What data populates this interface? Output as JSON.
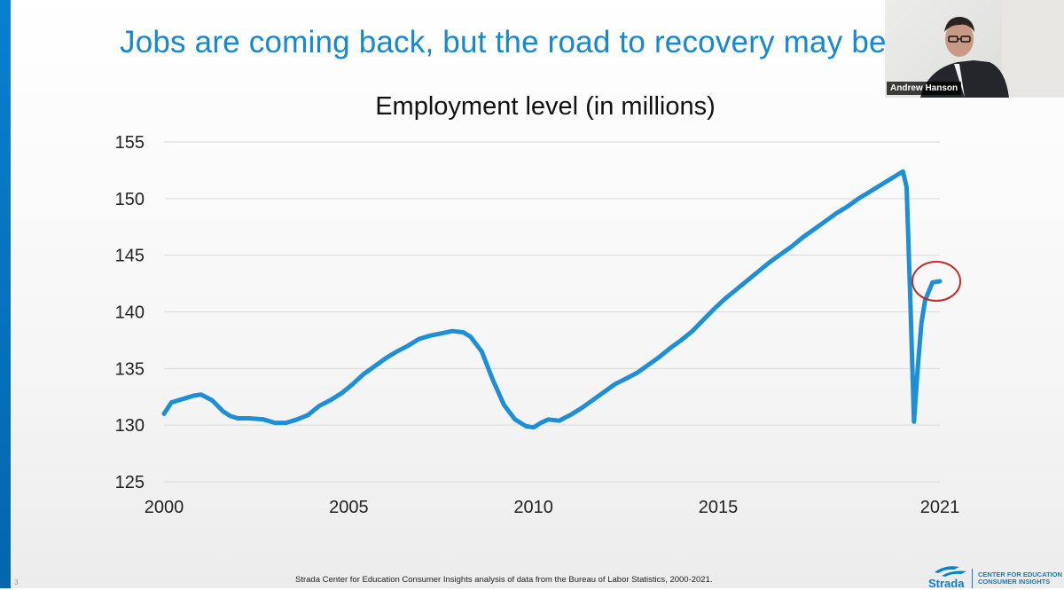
{
  "slide": {
    "headline": "Jobs are coming back, but the road to recovery may be",
    "footer_source": "Strada Center for Education Consumer Insights analysis of data from the Bureau of Labor Statistics, 2000-2021.",
    "page_number": "3",
    "logo_word": "Strada",
    "logo_tag_line1": "CENTER FOR EDUCATION",
    "logo_tag_line2": "CONSUMER INSIGHTS",
    "brand_color": "#0a7fcf",
    "headline_color": "#1688cf"
  },
  "video_tile": {
    "speaker_name": "Andrew Hanson"
  },
  "chart_data": {
    "type": "line",
    "title": "Employment level (in millions)",
    "xlabel": "",
    "ylabel": "",
    "xlim": [
      2000,
      2021
    ],
    "ylim": [
      125,
      155
    ],
    "x_ticks": [
      "2000",
      "2005",
      "2010",
      "2015",
      "2021"
    ],
    "y_ticks": [
      "125",
      "130",
      "135",
      "140",
      "145",
      "150",
      "155"
    ],
    "grid": "horizontal",
    "line_color": "#1c8fd6",
    "annotation": {
      "type": "circle",
      "color": "#c82828",
      "at": [
        2021.0,
        142.7
      ]
    },
    "series": [
      {
        "x": [
          2000,
          2000.2,
          2000.5,
          2000.8,
          2001.0,
          2001.3,
          2001.6,
          2001.8,
          2002.0,
          2002.3,
          2002.7,
          2003.0,
          2003.3,
          2003.6,
          2003.9,
          2004.2,
          2004.5,
          2004.8,
          2005.1,
          2005.4,
          2005.7,
          2006.0,
          2006.3,
          2006.6,
          2006.9,
          2007.2,
          2007.5,
          2007.8,
          2008.1,
          2008.3,
          2008.6,
          2008.9,
          2009.2,
          2009.5,
          2009.8,
          2010.0,
          2010.2,
          2010.4,
          2010.7,
          2011.0,
          2011.3,
          2011.6,
          2011.9,
          2012.2,
          2012.5,
          2012.8,
          2013.1,
          2013.4,
          2013.7,
          2014.0,
          2014.3,
          2014.6,
          2014.9,
          2015.2,
          2015.5,
          2015.8,
          2016.1,
          2016.4,
          2016.7,
          2017.0,
          2017.3,
          2017.6,
          2017.9,
          2018.2,
          2018.5,
          2018.8,
          2019.1,
          2019.4,
          2019.7,
          2020.0,
          2020.1,
          2020.2,
          2020.3,
          2020.4,
          2020.5,
          2020.6,
          2020.8,
          2021.0
        ],
        "values": [
          131.0,
          132.0,
          132.3,
          132.6,
          132.7,
          132.2,
          131.2,
          130.8,
          130.6,
          130.6,
          130.5,
          130.2,
          130.2,
          130.5,
          130.9,
          131.7,
          132.2,
          132.8,
          133.6,
          134.5,
          135.2,
          135.9,
          136.5,
          137.0,
          137.6,
          137.9,
          138.1,
          138.3,
          138.2,
          137.8,
          136.5,
          134.0,
          131.8,
          130.5,
          129.9,
          129.8,
          130.2,
          130.5,
          130.4,
          130.9,
          131.5,
          132.2,
          132.9,
          133.6,
          134.1,
          134.6,
          135.3,
          136.0,
          136.8,
          137.5,
          138.3,
          139.3,
          140.3,
          141.2,
          142.0,
          142.8,
          143.6,
          144.4,
          145.1,
          145.8,
          146.6,
          147.3,
          148.0,
          148.7,
          149.3,
          150.0,
          150.6,
          151.2,
          151.8,
          152.4,
          151.0,
          141.0,
          130.3,
          135.0,
          139.0,
          141.0,
          142.6,
          142.7
        ]
      }
    ]
  }
}
